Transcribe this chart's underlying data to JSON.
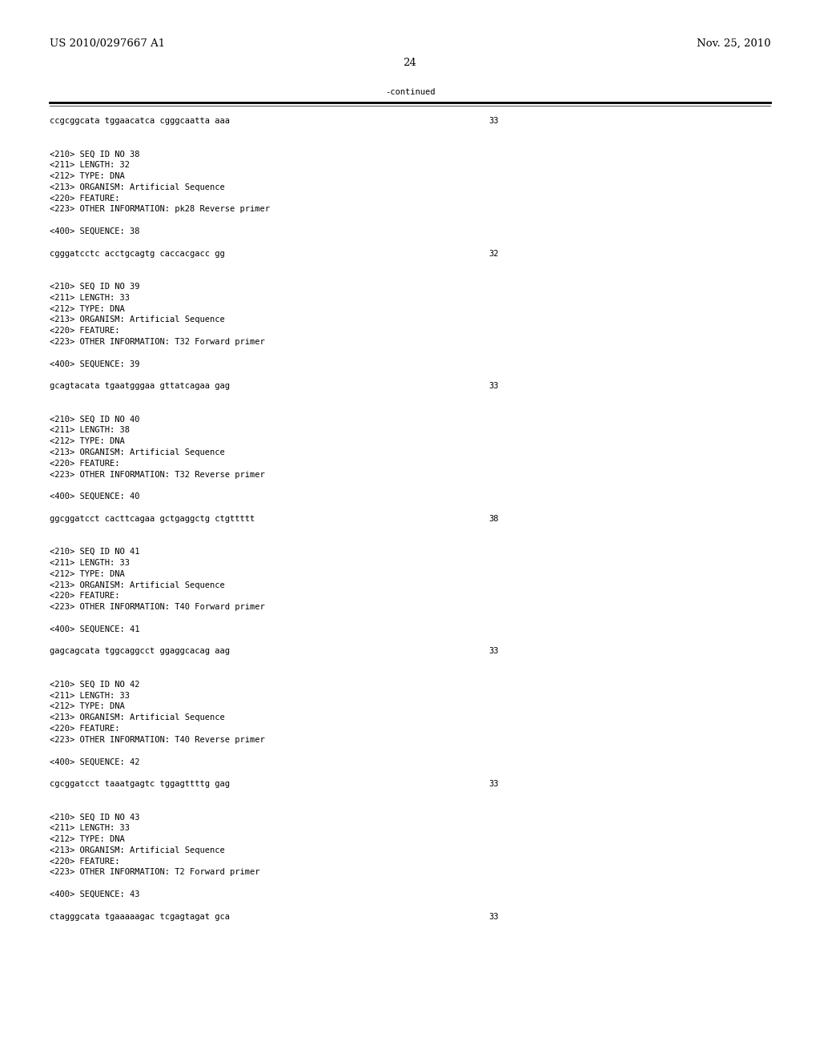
{
  "header_left": "US 2010/0297667 A1",
  "header_right": "Nov. 25, 2010",
  "page_number": "24",
  "continued_label": "-continued",
  "background_color": "#ffffff",
  "text_color": "#000000",
  "font_size_header": 9.5,
  "font_size_body": 7.5,
  "font_size_page": 9.5,
  "content_lines": [
    {
      "text": "ccgcggcata tggaacatca cgggcaatta aaa",
      "num": "33"
    },
    {
      "text": ""
    },
    {
      "text": ""
    },
    {
      "text": "<210> SEQ ID NO 38"
    },
    {
      "text": "<211> LENGTH: 32"
    },
    {
      "text": "<212> TYPE: DNA"
    },
    {
      "text": "<213> ORGANISM: Artificial Sequence"
    },
    {
      "text": "<220> FEATURE:"
    },
    {
      "text": "<223> OTHER INFORMATION: pk28 Reverse primer"
    },
    {
      "text": ""
    },
    {
      "text": "<400> SEQUENCE: 38"
    },
    {
      "text": ""
    },
    {
      "text": "cgggatcctc acctgcagtg caccacgacc gg",
      "num": "32"
    },
    {
      "text": ""
    },
    {
      "text": ""
    },
    {
      "text": "<210> SEQ ID NO 39"
    },
    {
      "text": "<211> LENGTH: 33"
    },
    {
      "text": "<212> TYPE: DNA"
    },
    {
      "text": "<213> ORGANISM: Artificial Sequence"
    },
    {
      "text": "<220> FEATURE:"
    },
    {
      "text": "<223> OTHER INFORMATION: T32 Forward primer"
    },
    {
      "text": ""
    },
    {
      "text": "<400> SEQUENCE: 39"
    },
    {
      "text": ""
    },
    {
      "text": "gcagtacata tgaatgggaa gttatcagaa gag",
      "num": "33"
    },
    {
      "text": ""
    },
    {
      "text": ""
    },
    {
      "text": "<210> SEQ ID NO 40"
    },
    {
      "text": "<211> LENGTH: 38"
    },
    {
      "text": "<212> TYPE: DNA"
    },
    {
      "text": "<213> ORGANISM: Artificial Sequence"
    },
    {
      "text": "<220> FEATURE:"
    },
    {
      "text": "<223> OTHER INFORMATION: T32 Reverse primer"
    },
    {
      "text": ""
    },
    {
      "text": "<400> SEQUENCE: 40"
    },
    {
      "text": ""
    },
    {
      "text": "ggcggatcct cacttcagaa gctgaggctg ctgttttt",
      "num": "38"
    },
    {
      "text": ""
    },
    {
      "text": ""
    },
    {
      "text": "<210> SEQ ID NO 41"
    },
    {
      "text": "<211> LENGTH: 33"
    },
    {
      "text": "<212> TYPE: DNA"
    },
    {
      "text": "<213> ORGANISM: Artificial Sequence"
    },
    {
      "text": "<220> FEATURE:"
    },
    {
      "text": "<223> OTHER INFORMATION: T40 Forward primer"
    },
    {
      "text": ""
    },
    {
      "text": "<400> SEQUENCE: 41"
    },
    {
      "text": ""
    },
    {
      "text": "gagcagcata tggcaggcct ggaggcacag aag",
      "num": "33"
    },
    {
      "text": ""
    },
    {
      "text": ""
    },
    {
      "text": "<210> SEQ ID NO 42"
    },
    {
      "text": "<211> LENGTH: 33"
    },
    {
      "text": "<212> TYPE: DNA"
    },
    {
      "text": "<213> ORGANISM: Artificial Sequence"
    },
    {
      "text": "<220> FEATURE:"
    },
    {
      "text": "<223> OTHER INFORMATION: T40 Reverse primer"
    },
    {
      "text": ""
    },
    {
      "text": "<400> SEQUENCE: 42"
    },
    {
      "text": ""
    },
    {
      "text": "cgcggatcct taaatgagtc tggagttttg gag",
      "num": "33"
    },
    {
      "text": ""
    },
    {
      "text": ""
    },
    {
      "text": "<210> SEQ ID NO 43"
    },
    {
      "text": "<211> LENGTH: 33"
    },
    {
      "text": "<212> TYPE: DNA"
    },
    {
      "text": "<213> ORGANISM: Artificial Sequence"
    },
    {
      "text": "<220> FEATURE:"
    },
    {
      "text": "<223> OTHER INFORMATION: T2 Forward primer"
    },
    {
      "text": ""
    },
    {
      "text": "<400> SEQUENCE: 43"
    },
    {
      "text": ""
    },
    {
      "text": "ctagggcata tgaaaaagac tcgagtagat gca",
      "num": "33"
    }
  ]
}
